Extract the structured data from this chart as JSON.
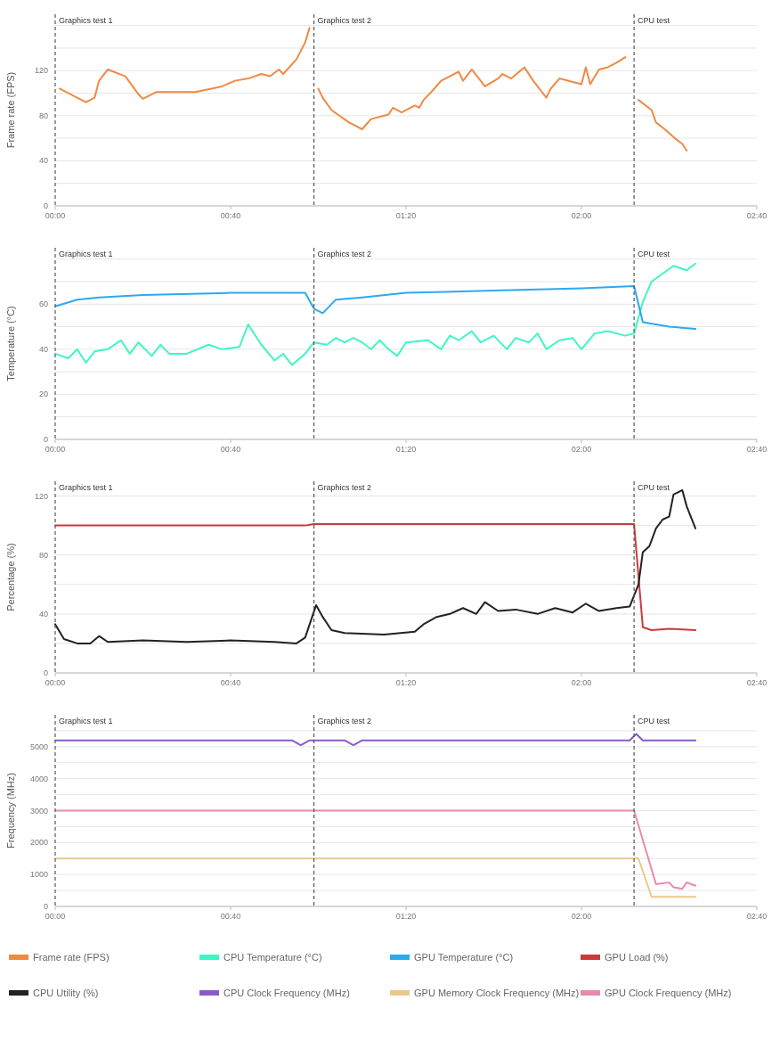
{
  "chart_data": [
    {
      "type": "line",
      "ylabel": "Frame rate (FPS)",
      "xlim": [
        0,
        160
      ],
      "xticks": [
        {
          "value": 0,
          "label": "00:00"
        },
        {
          "value": 40,
          "label": "00:40"
        },
        {
          "value": 80,
          "label": "01:20"
        },
        {
          "value": 120,
          "label": "02:00"
        },
        {
          "value": 160,
          "label": "02:40"
        }
      ],
      "ylim": [
        0,
        170
      ],
      "yticks": [
        0,
        {
          "value": 20,
          "label": null
        },
        40,
        {
          "value": 60,
          "label": null
        },
        80,
        {
          "value": 100,
          "label": null
        },
        120,
        {
          "value": 140,
          "label": null
        },
        {
          "value": 160,
          "label": null
        }
      ],
      "grid": "y",
      "legend": "bottom",
      "ref_lines": [
        {
          "axis": "x",
          "value": 0,
          "label": "Graphics test 1",
          "line_style": "dashed",
          "color": "#555555"
        },
        {
          "axis": "x",
          "value": 59,
          "label": "Graphics test 2",
          "line_style": "dashed",
          "color": "#555555"
        },
        {
          "axis": "x",
          "value": 132,
          "label": "CPU test",
          "line_style": "dashed",
          "color": "#555555"
        }
      ],
      "series": [
        {
          "name": "Frame rate (FPS)",
          "color": "#ef8a45",
          "x": [
            1,
            5,
            7,
            9,
            10,
            12,
            16,
            19,
            20,
            23,
            32,
            38,
            41,
            44,
            47,
            49,
            51,
            52,
            55,
            57,
            58,
            59,
            60,
            61,
            63,
            67,
            70,
            72,
            76,
            77,
            79,
            82,
            83,
            84,
            86,
            88,
            90,
            92,
            93,
            95,
            98,
            101,
            102,
            104,
            107,
            109,
            112,
            113,
            115,
            120,
            121,
            122,
            124,
            126,
            128,
            130,
            131,
            133,
            136,
            137,
            139,
            141,
            143,
            144
          ],
          "values": [
            104,
            96,
            92,
            96,
            111,
            121,
            115,
            99,
            95,
            101,
            101,
            106,
            111,
            113,
            117,
            115,
            121,
            117,
            130,
            145,
            158,
            null,
            104,
            96,
            85,
            74,
            68,
            77,
            81,
            87,
            83,
            89,
            87,
            94,
            102,
            111,
            115,
            119,
            111,
            121,
            106,
            113,
            117,
            113,
            123,
            111,
            96,
            104,
            113,
            108,
            123,
            108,
            121,
            123,
            127,
            132,
            null,
            94,
            85,
            74,
            68,
            61,
            55,
            49
          ]
        }
      ]
    },
    {
      "type": "line",
      "ylabel": "Temperature (°C)",
      "xlim": [
        0,
        160
      ],
      "xticks": [
        {
          "value": 0,
          "label": "00:00"
        },
        {
          "value": 40,
          "label": "00:40"
        },
        {
          "value": 80,
          "label": "01:20"
        },
        {
          "value": 120,
          "label": "02:00"
        },
        {
          "value": 160,
          "label": "02:40"
        }
      ],
      "ylim": [
        0,
        85
      ],
      "yticks": [
        0,
        {
          "value": 10,
          "label": null
        },
        20,
        {
          "value": 30,
          "label": null
        },
        40,
        {
          "value": 50,
          "label": null
        },
        60,
        {
          "value": 70,
          "label": null
        },
        {
          "value": 80,
          "label": null
        }
      ],
      "grid": "y",
      "legend": "bottom",
      "ref_lines": [
        {
          "axis": "x",
          "value": 0,
          "label": "Graphics test 1",
          "line_style": "dashed",
          "color": "#555555"
        },
        {
          "axis": "x",
          "value": 59,
          "label": "Graphics test 2",
          "line_style": "dashed",
          "color": "#555555"
        },
        {
          "axis": "x",
          "value": 132,
          "label": "CPU test",
          "line_style": "dashed",
          "color": "#555555"
        }
      ],
      "series": [
        {
          "name": "CPU Temperature (°C)",
          "color": "#3ff5c8",
          "x": [
            0,
            3,
            5,
            7,
            9,
            12,
            15,
            17,
            19,
            22,
            24,
            26,
            30,
            35,
            38,
            42,
            44,
            47,
            50,
            52,
            54,
            57,
            59,
            62,
            64,
            66,
            68,
            70,
            72,
            74,
            76,
            78,
            80,
            85,
            88,
            90,
            92,
            95,
            97,
            100,
            103,
            105,
            108,
            110,
            112,
            115,
            118,
            120,
            123,
            126,
            130,
            132,
            134,
            136,
            141,
            144,
            146
          ],
          "values": [
            38,
            36,
            40,
            34,
            39,
            40,
            44,
            38,
            43,
            37,
            42,
            38,
            38,
            42,
            40,
            41,
            51,
            42,
            35,
            38,
            33,
            38,
            43,
            42,
            45,
            43,
            45,
            43,
            40,
            44,
            40,
            37,
            43,
            44,
            40,
            46,
            44,
            48,
            43,
            46,
            40,
            45,
            43,
            47,
            40,
            44,
            45,
            40,
            47,
            48,
            46,
            47,
            61,
            70,
            77,
            75,
            78
          ]
        },
        {
          "name": "GPU Temperature (°C)",
          "color": "#2ea8f0",
          "x": [
            0,
            5,
            10,
            20,
            40,
            57,
            59,
            61,
            64,
            70,
            80,
            100,
            120,
            132,
            134,
            140,
            146
          ],
          "values": [
            59,
            62,
            63,
            64,
            65,
            65,
            58,
            56,
            62,
            63,
            65,
            66,
            67,
            68,
            52,
            50,
            49
          ]
        }
      ]
    },
    {
      "type": "line",
      "ylabel": "Percentage (%)",
      "xlim": [
        0,
        160
      ],
      "xticks": [
        {
          "value": 0,
          "label": "00:00"
        },
        {
          "value": 40,
          "label": "00:40"
        },
        {
          "value": 80,
          "label": "01:20"
        },
        {
          "value": 120,
          "label": "02:00"
        },
        {
          "value": 160,
          "label": "02:40"
        }
      ],
      "ylim": [
        0,
        130
      ],
      "yticks": [
        0,
        {
          "value": 20,
          "label": null
        },
        40,
        {
          "value": 60,
          "label": null
        },
        80,
        {
          "value": 100,
          "label": null
        },
        120
      ],
      "grid": "y",
      "legend": "bottom",
      "ref_lines": [
        {
          "axis": "x",
          "value": 0,
          "label": "Graphics test 1",
          "line_style": "dashed",
          "color": "#555555"
        },
        {
          "axis": "x",
          "value": 59,
          "label": "Graphics test 2",
          "line_style": "dashed",
          "color": "#555555"
        },
        {
          "axis": "x",
          "value": 132,
          "label": "CPU test",
          "line_style": "dashed",
          "color": "#555555"
        }
      ],
      "series": [
        {
          "name": "GPU Load (%)",
          "color": "#c83c3c",
          "x": [
            0,
            57,
            59,
            132,
            134,
            136,
            140,
            146
          ],
          "values": [
            100,
            100,
            101,
            101,
            31,
            29,
            30,
            29
          ]
        },
        {
          "name": "CPU Utility (%)",
          "color": "#222222",
          "x": [
            0,
            2,
            5,
            8,
            10,
            12,
            20,
            30,
            40,
            50,
            55,
            57,
            59.5,
            61,
            63,
            66,
            75,
            82,
            84,
            87,
            90,
            93,
            96,
            98,
            101,
            105,
            110,
            114,
            118,
            121,
            124,
            128,
            131,
            133,
            134,
            135.5,
            137,
            138.5,
            140,
            141,
            143,
            144,
            146
          ],
          "values": [
            33,
            23,
            20,
            20,
            25,
            21,
            22,
            21,
            22,
            21,
            20,
            24,
            46,
            38,
            29,
            27,
            26,
            28,
            33,
            38,
            40,
            44,
            40,
            48,
            42,
            43,
            40,
            44,
            41,
            47,
            42,
            44,
            45,
            60,
            82,
            86,
            98,
            104,
            106,
            121,
            124,
            113,
            98
          ]
        }
      ]
    },
    {
      "type": "line",
      "ylabel": "Frequency (MHz)",
      "xlim": [
        0,
        160
      ],
      "xticks": [
        {
          "value": 0,
          "label": "00:00"
        },
        {
          "value": 40,
          "label": "00:40"
        },
        {
          "value": 80,
          "label": "01:20"
        },
        {
          "value": 120,
          "label": "02:00"
        },
        {
          "value": 160,
          "label": "02:40"
        }
      ],
      "ylim": [
        0,
        6000
      ],
      "yticks": [
        0,
        {
          "value": 500,
          "label": null
        },
        1000,
        {
          "value": 1500,
          "label": null
        },
        2000,
        {
          "value": 2500,
          "label": null
        },
        3000,
        {
          "value": 3500,
          "label": null
        },
        4000,
        {
          "value": 4500,
          "label": null
        },
        5000,
        {
          "value": 5500,
          "label": null
        }
      ],
      "grid": "y",
      "legend": "bottom",
      "ref_lines": [
        {
          "axis": "x",
          "value": 0,
          "label": "Graphics test 1",
          "line_style": "dashed",
          "color": "#555555"
        },
        {
          "axis": "x",
          "value": 59,
          "label": "Graphics test 2",
          "line_style": "dashed",
          "color": "#555555"
        },
        {
          "axis": "x",
          "value": 132,
          "label": "CPU test",
          "line_style": "dashed",
          "color": "#555555"
        }
      ],
      "series": [
        {
          "name": "CPU Clock Frequency (MHz)",
          "color": "#8a5acd",
          "x": [
            0,
            54,
            56,
            58,
            66,
            68,
            70,
            131,
            132.5,
            134,
            146
          ],
          "values": [
            5200,
            5200,
            5050,
            5200,
            5200,
            5050,
            5200,
            5200,
            5400,
            5200,
            5200
          ]
        },
        {
          "name": "GPU Memory Clock Frequency (MHz)",
          "color": "#e8c98a",
          "x": [
            0,
            133,
            136,
            146
          ],
          "values": [
            1500,
            1500,
            300,
            300
          ]
        },
        {
          "name": "GPU Clock Frequency (MHz)",
          "color": "#e88ab0",
          "x": [
            0,
            132,
            137,
            140,
            141,
            143,
            144,
            146
          ],
          "values": [
            3000,
            3000,
            700,
            750,
            600,
            550,
            750,
            650
          ]
        }
      ]
    }
  ]
}
